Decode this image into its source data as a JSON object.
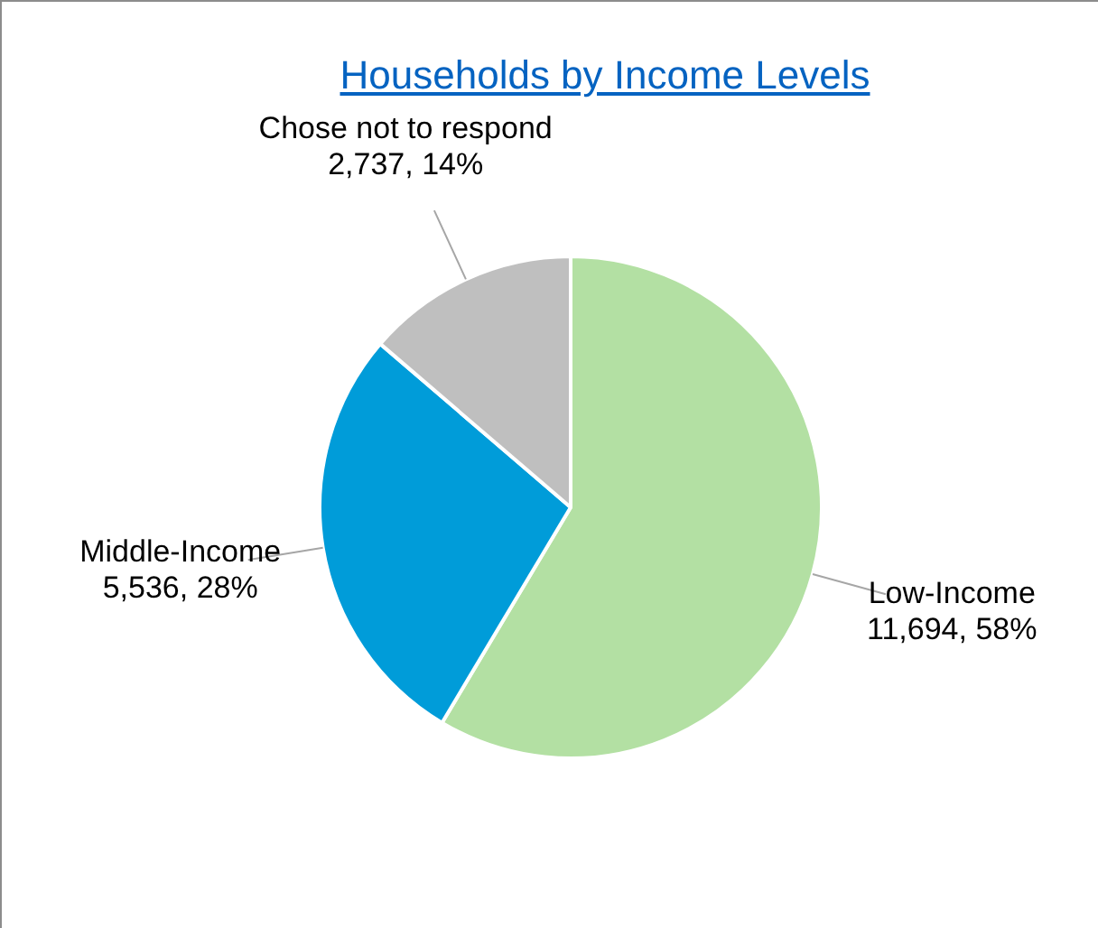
{
  "chart_data": {
    "type": "pie",
    "title": "Households by Income Levels",
    "categories": [
      "Low-Income",
      "Middle-Income",
      "Chose not to respond"
    ],
    "values": [
      11694,
      5536,
      2737
    ],
    "value_labels": [
      "11,694, 58%",
      "5,536, 28%",
      "2,737, 14%"
    ],
    "colors": [
      "#b3e0a3",
      "#009cd9",
      "#bfbfbf"
    ],
    "legend": false
  }
}
